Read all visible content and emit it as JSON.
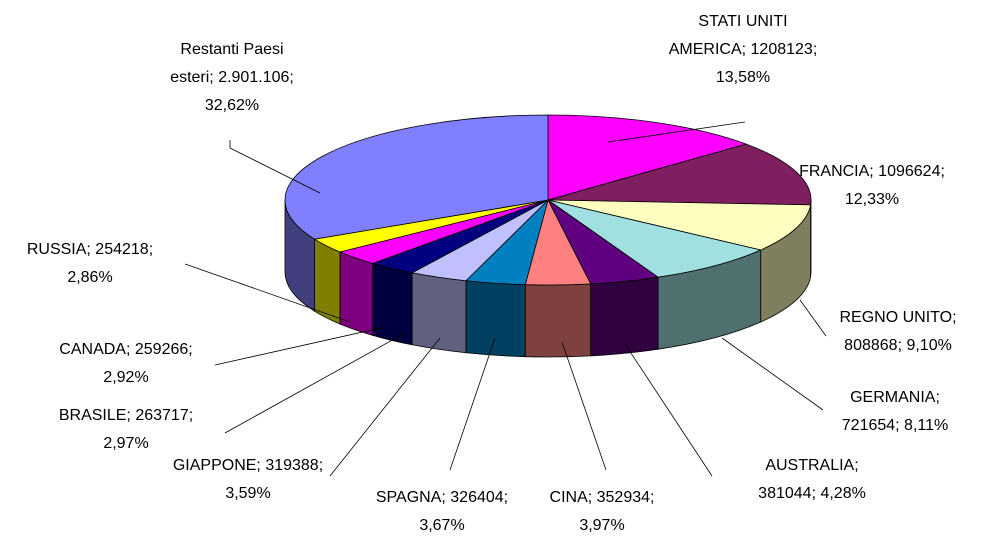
{
  "chart_data": {
    "type": "pie3d",
    "values": [
      1208123,
      1096624,
      808868,
      721654,
      381044,
      352934,
      326404,
      319388,
      263717,
      259266,
      254218,
      2901106
    ],
    "value_labels": [
      [
        "STATI UNITI",
        "AMERICA; 1208123;",
        "13,58%"
      ],
      [
        "FRANCIA; 1096624;",
        "12,33%"
      ],
      [
        "REGNO UNITO;",
        "808868; 9,10%"
      ],
      [
        "GERMANIA;",
        "721654; 8,11%"
      ],
      [
        "AUSTRALIA;",
        "381044; 4,28%"
      ],
      [
        "CINA; 352934;",
        "3,97%"
      ],
      [
        "SPAGNA; 326404;",
        "3,67%"
      ],
      [
        "GIAPPONE; 319388;",
        "3,59%"
      ],
      [
        "BRASILE; 263717;",
        "2,97%"
      ],
      [
        "CANADA; 259266;",
        "2,92%"
      ],
      [
        "RUSSIA; 254218;",
        "2,86%"
      ],
      [
        "Restanti Paesi",
        "esteri; 2.901.106;",
        "32,62%"
      ]
    ],
    "colors": [
      "#ff00ff",
      "#801f60",
      "#ffffc0",
      "#a0e0e0",
      "#600080",
      "#ff8080",
      "#0080c0",
      "#c0c0ff",
      "#000080",
      "#ff00ff",
      "#ffff00",
      "#8080ff"
    ]
  }
}
